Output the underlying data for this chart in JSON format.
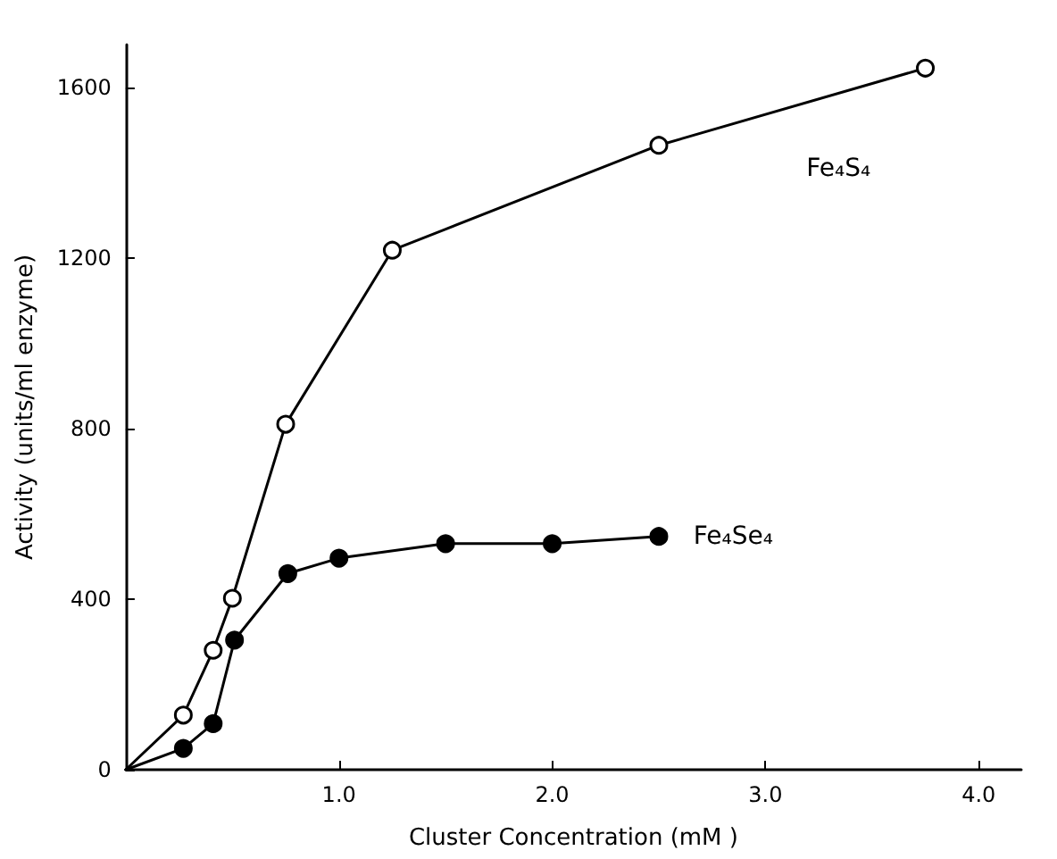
{
  "chart_data": {
    "type": "line",
    "xlabel": "Cluster Concentration (mM )",
    "ylabel": "Activity (units/ml enzyme)",
    "xlim": [
      0,
      4.2
    ],
    "ylim": [
      0,
      1700
    ],
    "xticks": [
      {
        "value": 1,
        "label": "1.0"
      },
      {
        "value": 2,
        "label": "2.0"
      },
      {
        "value": 3,
        "label": "3.0"
      },
      {
        "value": 4,
        "label": "4.0"
      }
    ],
    "yticks": [
      0,
      400,
      800,
      1200,
      1600
    ],
    "grid": false,
    "legend": false,
    "marker": "circle",
    "line_style": "solid",
    "series": [
      {
        "name": "Fe₄S₄",
        "color": "#000000",
        "x": [
          0,
          0.27,
          0.41,
          0.5,
          0.75,
          1.25,
          2.5,
          3.75
        ],
        "values": [
          0,
          128,
          280,
          402,
          810,
          1218,
          1464,
          1645
        ]
      },
      {
        "name": "Fe₄Se₄",
        "color": "#000000",
        "x": [
          0,
          0.27,
          0.41,
          0.51,
          0.76,
          1.0,
          1.5,
          2.0,
          2.5
        ],
        "values": [
          0,
          50,
          108,
          304,
          460,
          496,
          530,
          530,
          547
        ]
      }
    ]
  }
}
